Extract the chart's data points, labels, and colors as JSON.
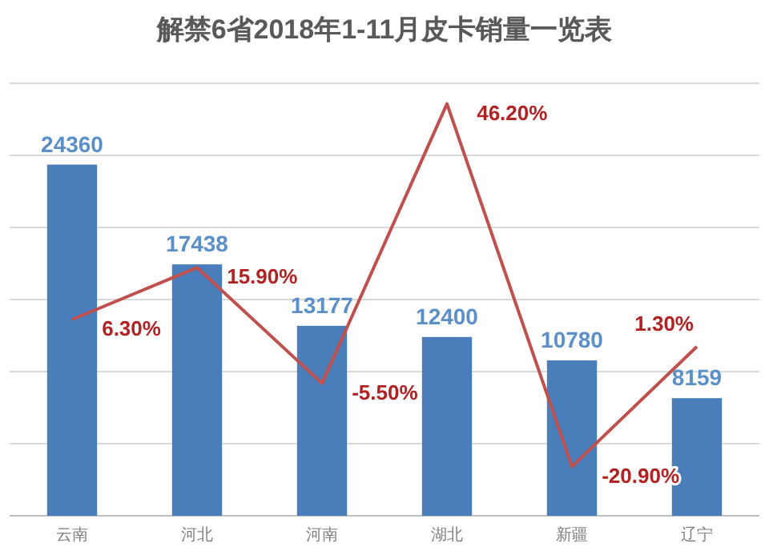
{
  "chart_data": {
    "type": "bar",
    "title": "解禁6省2018年1-11月皮卡销量一览表",
    "categories": [
      "云南",
      "河北",
      "河南",
      "湖北",
      "新疆",
      "辽宁"
    ],
    "series": [
      {
        "color": "#4a7ebb",
        "values": [
          24360,
          17438,
          13177,
          12400,
          10780,
          8159
        ]
      },
      {
        "type": "line",
        "axis": "y2",
        "color": "#c0504d",
        "values": [
          6.3,
          15.9,
          -5.5,
          46.2,
          -20.9,
          1.3
        ],
        "value_labels": [
          "6.30%",
          "15.90%",
          "-5.50%",
          "46.20%",
          "-20.90%",
          "1.30%"
        ]
      }
    ],
    "ylim": [
      0,
      30000
    ],
    "yticks": [
      {
        "value": 0,
        "label": null
      },
      {
        "value": 5000,
        "label": null
      },
      {
        "value": 10000,
        "label": null
      },
      {
        "value": 15000,
        "label": null
      },
      {
        "value": 20000,
        "label": null
      },
      {
        "value": 25000,
        "label": null
      },
      {
        "value": 30000,
        "label": null
      }
    ],
    "y2lim": [
      -30,
      50
    ],
    "grid": "y",
    "data_labels": true,
    "tick_labels": "x",
    "marker": "none"
  }
}
